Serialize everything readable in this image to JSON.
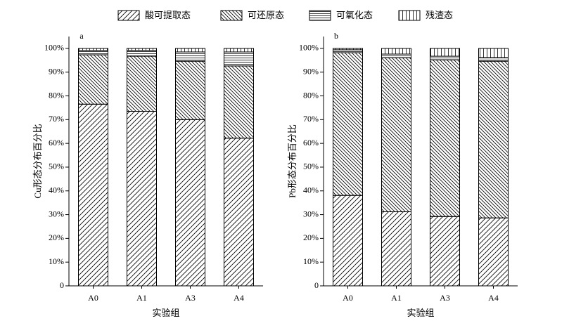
{
  "chart_data": [
    {
      "type": "bar",
      "stacked": true,
      "panel_label": "a",
      "ylabel": "Cu形态分布百分比",
      "xlabel": "实验组",
      "categories": [
        "A0",
        "A1",
        "A3",
        "A4"
      ],
      "ylim": [
        0,
        105
      ],
      "yticks": [
        0,
        {
          "value": 10,
          "label": "10%"
        },
        {
          "value": 20,
          "label": "20%"
        },
        {
          "value": 30,
          "label": "30%"
        },
        {
          "value": 40,
          "label": "40%"
        },
        {
          "value": 50,
          "label": "50%"
        },
        {
          "value": 60,
          "label": "60%"
        },
        {
          "value": 70,
          "label": "70%"
        },
        {
          "value": 80,
          "label": "80%"
        },
        {
          "value": 90,
          "label": "90%"
        },
        {
          "value": 100,
          "label": "100%"
        }
      ],
      "series": [
        {
          "name": "酸可提取态",
          "pattern": "diagonal-up",
          "color": "#000000",
          "values": [
            76.5,
            73.5,
            70.0,
            62.2
          ]
        },
        {
          "name": "可还原态",
          "pattern": "diagonal-down",
          "color": "#000000",
          "values": [
            20.8,
            23.2,
            24.6,
            30.4
          ]
        },
        {
          "name": "可氧化态",
          "pattern": "horizontal",
          "color": "#000000",
          "values": [
            1.8,
            2.4,
            3.9,
            5.9
          ]
        },
        {
          "name": "残渣态",
          "pattern": "vertical",
          "color": "#000000",
          "values": [
            0.9,
            0.9,
            1.5,
            1.5
          ]
        }
      ]
    },
    {
      "type": "bar",
      "stacked": true,
      "panel_label": "b",
      "ylabel": "Pb形态分布百分比",
      "xlabel": "实验组",
      "categories": [
        "A0",
        "A1",
        "A3",
        "A4"
      ],
      "ylim": [
        0,
        105
      ],
      "yticks": [
        0,
        {
          "value": 10,
          "label": "10%"
        },
        {
          "value": 20,
          "label": "20%"
        },
        {
          "value": 30,
          "label": "30%"
        },
        {
          "value": 40,
          "label": "40%"
        },
        {
          "value": 50,
          "label": "50%"
        },
        {
          "value": 60,
          "label": "60%"
        },
        {
          "value": 70,
          "label": "70%"
        },
        {
          "value": 80,
          "label": "80%"
        },
        {
          "value": 90,
          "label": "90%"
        },
        {
          "value": 100,
          "label": "100%"
        }
      ],
      "series": [
        {
          "pattern": "diagonal-up",
          "color": "#000000",
          "values": [
            38.1,
            31.2,
            29.2,
            28.6
          ]
        },
        {
          "pattern": "diagonal-down",
          "color": "#000000",
          "values": [
            60.1,
            64.9,
            66.0,
            66.0
          ]
        },
        {
          "pattern": "horizontal",
          "color": "#000000",
          "values": [
            1.2,
            1.5,
            1.5,
            1.5
          ]
        },
        {
          "pattern": "vertical",
          "color": "#000000",
          "values": [
            0.6,
            2.4,
            3.3,
            3.9
          ]
        }
      ]
    }
  ]
}
